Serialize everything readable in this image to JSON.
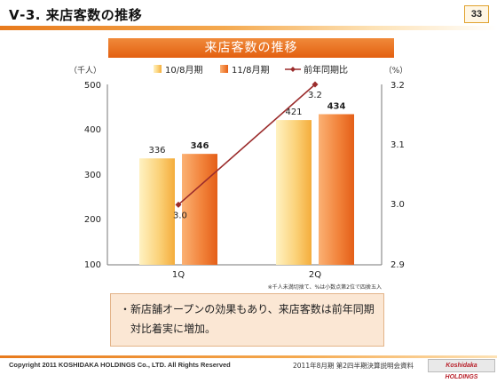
{
  "header": {
    "title": "Ⅴ-3. 来店客数の推移",
    "page_number": "33"
  },
  "colors": {
    "accent_orange": "#e8731c",
    "bar_fy10_light": "#fde39a",
    "bar_fy10_dark": "#f7b640",
    "bar_fy11_light": "#f8a45c",
    "bar_fy11_dark": "#e9631b",
    "line_color": "#9b2c2c",
    "note_bg": "#fbe7d4"
  },
  "chart_data": {
    "type": "bar",
    "title": "来店客数の推移",
    "categories": [
      "1Q",
      "2Q"
    ],
    "left_axis": {
      "unit_label": "（千人）",
      "ylim": [
        100,
        500
      ],
      "ticks": [
        "500",
        "400",
        "300",
        "200",
        "100"
      ]
    },
    "right_axis": {
      "unit_label": "（%）",
      "ylim": [
        2.9,
        3.2
      ],
      "ticks": [
        "3.2",
        "3.1",
        "3.0",
        "2.9"
      ]
    },
    "series": [
      {
        "name": "10/8月期",
        "type": "bar",
        "axis": "left",
        "values": [
          336,
          421
        ],
        "labels": [
          "336",
          "421"
        ]
      },
      {
        "name": "11/8月期",
        "type": "bar",
        "axis": "left",
        "values": [
          346,
          434
        ],
        "labels": [
          "346",
          "434"
        ]
      },
      {
        "name": "前年同期比",
        "type": "line",
        "axis": "right",
        "values": [
          3.0,
          3.2
        ],
        "labels": [
          "3.0",
          "3.2"
        ]
      }
    ],
    "footnote": "※千人未満切捨て、%は小数点第2位で四捨五入",
    "grid": false,
    "legend_position": "top"
  },
  "note": {
    "line1": "・新店舗オープンの効果もあり、来店客数は前年同期",
    "line2": "対比着実に増加。"
  },
  "footer": {
    "copyright": "Copyright 2011 KOSHIDAKA HOLDINGS Co., LTD. All Rights Reserved",
    "document": "2011年8月期 第2四半期決算説明会資料",
    "logo_text": "Koshidaka HOLDINGS"
  }
}
